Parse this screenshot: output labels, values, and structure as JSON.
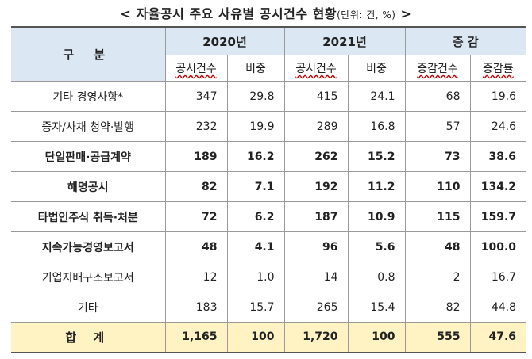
{
  "title": {
    "main": "< 자율공시 주요 사유별 공시건수 현황",
    "unit": "(단위: 건, %)",
    "close": " >"
  },
  "header": {
    "gubun": "구 분",
    "year2020": "2020년",
    "year2021": "2021년",
    "change": "증 감",
    "sub": [
      "공시건수",
      "비중",
      "공시건수",
      "비중",
      "증감건수",
      "증감률"
    ]
  },
  "rows": [
    {
      "label": "기타 경영사항*",
      "bold": false,
      "v": [
        "347",
        "29.8",
        "415",
        "24.1",
        "68",
        "19.6"
      ]
    },
    {
      "label": "증자/사채 청약·발행",
      "bold": false,
      "v": [
        "232",
        "19.9",
        "289",
        "16.8",
        "57",
        "24.6"
      ]
    },
    {
      "label": "단일판매·공급계약",
      "bold": true,
      "v": [
        "189",
        "16.2",
        "262",
        "15.2",
        "73",
        "38.6"
      ]
    },
    {
      "label": "해명공시",
      "bold": true,
      "v": [
        "82",
        "7.1",
        "192",
        "11.2",
        "110",
        "134.2"
      ]
    },
    {
      "label": "타법인주식 취득·처분",
      "bold": true,
      "v": [
        "72",
        "6.2",
        "187",
        "10.9",
        "115",
        "159.7"
      ]
    },
    {
      "label": "지속가능경영보고서",
      "bold": true,
      "v": [
        "48",
        "4.1",
        "96",
        "5.6",
        "48",
        "100.0"
      ]
    },
    {
      "label": "기업지배구조보고서",
      "bold": false,
      "v": [
        "12",
        "1.0",
        "14",
        "0.8",
        "2",
        "16.7"
      ]
    },
    {
      "label": "기타",
      "bold": false,
      "v": [
        "183",
        "15.7",
        "265",
        "15.4",
        "82",
        "44.8"
      ]
    }
  ],
  "total": {
    "label": "합 계",
    "v": [
      "1,165",
      "100",
      "1,720",
      "100",
      "555",
      "47.6"
    ]
  }
}
